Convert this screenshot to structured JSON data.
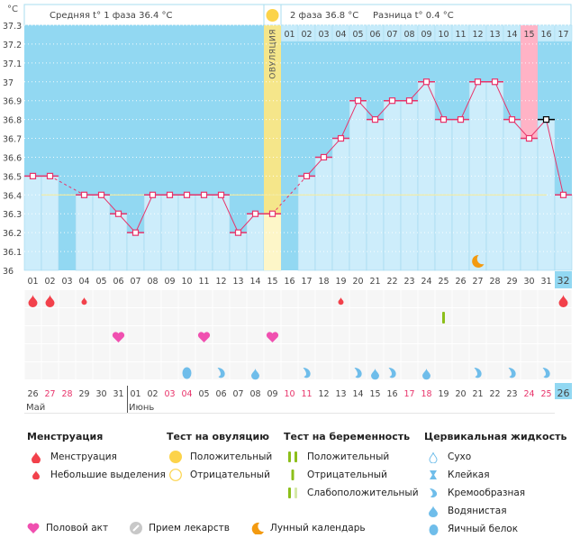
{
  "header": {
    "unit": "°C",
    "phase1_label": "Средняя t° 1 фаза 36.4 °C",
    "phase2_label": "2 фаза 36.8 °C",
    "difference_label": "Разница t° 0.4 °C",
    "ovulation_label": "ОВУЛЯЦИЯ"
  },
  "chart_data": {
    "type": "line",
    "title": "Basal body temperature chart",
    "ylabel": "°C",
    "ylim": [
      36.0,
      37.3
    ],
    "yticks": [
      "36",
      "36.1",
      "36.2",
      "36.3",
      "36.4",
      "36.5",
      "36.6",
      "36.7",
      "36.8",
      "36.9",
      "37",
      "37.1",
      "37.2",
      "37.3"
    ],
    "cycle_days": [
      "01",
      "02",
      "03",
      "04",
      "05",
      "06",
      "07",
      "08",
      "09",
      "10",
      "11",
      "12",
      "13",
      "14",
      "15",
      "16",
      "17",
      "18",
      "19",
      "20",
      "21",
      "22",
      "23",
      "24",
      "25",
      "26",
      "27",
      "28",
      "29",
      "30",
      "31",
      "32"
    ],
    "temperatures": [
      36.5,
      36.5,
      null,
      36.4,
      36.4,
      36.3,
      36.2,
      36.4,
      36.4,
      36.4,
      36.4,
      36.4,
      36.2,
      36.3,
      36.3,
      null,
      36.5,
      36.6,
      36.7,
      36.9,
      36.8,
      36.9,
      36.9,
      37.0,
      36.8,
      36.8,
      37.0,
      37.0,
      36.8,
      36.7,
      36.8,
      36.4
    ],
    "excluded_day": 31,
    "coverline": 36.4,
    "ovulation_day": 15,
    "highlight_day": 30,
    "current_day": 32,
    "phase2_day_numbers": [
      "01",
      "02",
      "03",
      "04",
      "05",
      "06",
      "07",
      "08",
      "09",
      "10",
      "11",
      "12",
      "13",
      "14",
      "15",
      "16",
      "17"
    ],
    "phase2_highlight": 15,
    "moon_day": 27,
    "calendar_dates": [
      {
        "d": "26",
        "weekend": false
      },
      {
        "d": "27",
        "weekend": true
      },
      {
        "d": "28",
        "weekend": true
      },
      {
        "d": "29",
        "weekend": false
      },
      {
        "d": "30",
        "weekend": false
      },
      {
        "d": "31",
        "weekend": false
      },
      {
        "d": "01",
        "weekend": false
      },
      {
        "d": "02",
        "weekend": false
      },
      {
        "d": "03",
        "weekend": true
      },
      {
        "d": "04",
        "weekend": true
      },
      {
        "d": "05",
        "weekend": false
      },
      {
        "d": "06",
        "weekend": false
      },
      {
        "d": "07",
        "weekend": false
      },
      {
        "d": "08",
        "weekend": false
      },
      {
        "d": "09",
        "weekend": false
      },
      {
        "d": "10",
        "weekend": true
      },
      {
        "d": "11",
        "weekend": true
      },
      {
        "d": "12",
        "weekend": false
      },
      {
        "d": "13",
        "weekend": false
      },
      {
        "d": "14",
        "weekend": false
      },
      {
        "d": "15",
        "weekend": false
      },
      {
        "d": "16",
        "weekend": false
      },
      {
        "d": "17",
        "weekend": true
      },
      {
        "d": "18",
        "weekend": true
      },
      {
        "d": "19",
        "weekend": false
      },
      {
        "d": "20",
        "weekend": false
      },
      {
        "d": "21",
        "weekend": false
      },
      {
        "d": "22",
        "weekend": false
      },
      {
        "d": "23",
        "weekend": false
      },
      {
        "d": "24",
        "weekend": true
      },
      {
        "d": "25",
        "weekend": true
      },
      {
        "d": "26",
        "weekend": false
      }
    ],
    "months": [
      {
        "name": "Май",
        "start_day": 1
      },
      {
        "name": "Июнь",
        "start_day": 7
      }
    ],
    "markers": {
      "menstruation": [
        1,
        2,
        32
      ],
      "spotting": [
        4,
        19
      ],
      "pregnancy_test_negative": [
        25
      ],
      "intercourse": [
        6,
        11,
        15
      ],
      "cervical_creamy": [
        12,
        17,
        20,
        22,
        27,
        29,
        31
      ],
      "cervical_watery": [
        14,
        21,
        24
      ],
      "cervical_eggwhite": [
        10
      ]
    }
  },
  "legend": {
    "menstruation": {
      "title": "Менструация",
      "items": [
        "Менструация",
        "Небольшие выделения"
      ]
    },
    "ovulation_test": {
      "title": "Тест на овуляцию",
      "items": [
        "Положительный",
        "Отрицательный"
      ]
    },
    "pregnancy_test": {
      "title": "Тест на беременность",
      "items": [
        "Положительный",
        "Отрицательный",
        "Слабоположительный"
      ]
    },
    "cervical_fluid": {
      "title": "Цервикальная жидкость",
      "items": [
        "Сухо",
        "Клейкая",
        "Кремообразная",
        "Водянистая",
        "Яичный белок"
      ]
    },
    "other": [
      "Половой акт",
      "Прием лекарств",
      "Лунный календарь"
    ]
  },
  "colors": {
    "sky": "#92d8f2",
    "bar": "#cdedfb",
    "line": "#e8336a",
    "ovulation": "#f5e68a",
    "highlight": "#ffb3c6",
    "coverline": "#f3eba0",
    "blood": "#f2414b",
    "heart": "#f050b0",
    "fluid": "#6fbdea",
    "green": "#8cbf1a",
    "moon": "#f39a10",
    "weekend": "#e8336a"
  }
}
